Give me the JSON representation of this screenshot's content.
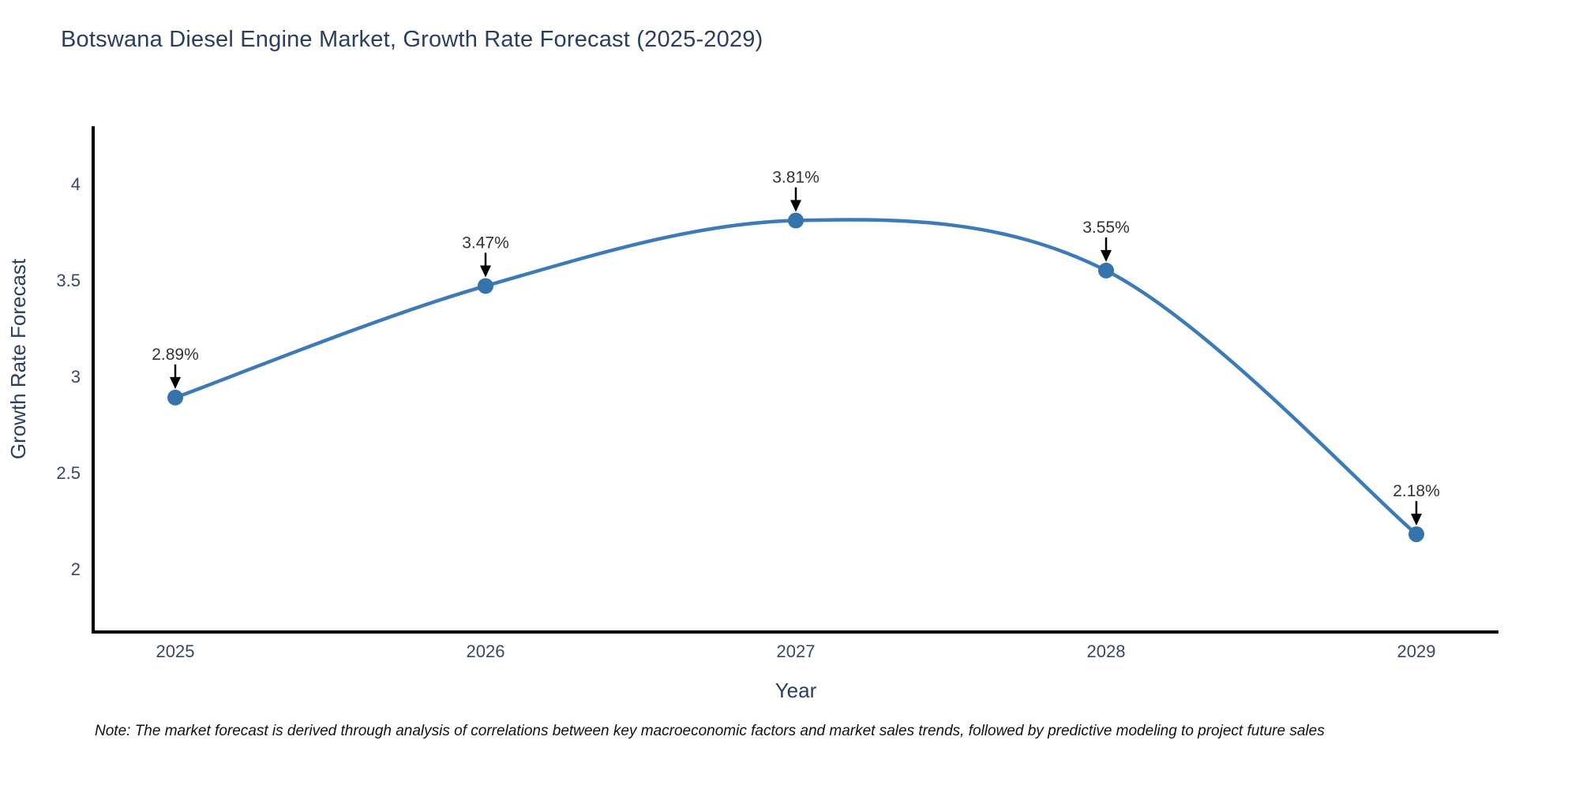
{
  "title": "Botswana Diesel Engine Market, Growth Rate Forecast (2025-2029)",
  "note": "Note: The market forecast is derived through analysis of correlations between key macroeconomic factors and market sales trends, followed by predictive modeling to project future sales",
  "colors": {
    "line": "#3d7bb8",
    "marker": "#3573ad",
    "axis_line": "#000000",
    "heading_text": "#2a3f5f",
    "tick_text": "#3a4763",
    "annotation_text": "#333333",
    "annotation_arrow": "#000000"
  },
  "chart_data": {
    "type": "line",
    "title": "Botswana Diesel Engine Market, Growth Rate Forecast (2025-2029)",
    "x": [
      "2025",
      "2026",
      "2027",
      "2028",
      "2029"
    ],
    "values": [
      2.89,
      3.47,
      3.81,
      3.55,
      2.18
    ],
    "point_labels": [
      "2.89%",
      "3.47%",
      "3.81%",
      "3.55%",
      "2.18%"
    ],
    "xlabel": "Year",
    "ylabel": "Growth Rate Forecast",
    "ylim": [
      1.672,
      4.3
    ],
    "yticks": [
      2,
      2.5,
      3,
      3.5,
      4
    ],
    "ytick_labels": [
      "2",
      "2.5",
      "3",
      "3.5",
      "4"
    ],
    "line_shape": "spline",
    "grid": false,
    "legend": false,
    "annotations": true
  }
}
